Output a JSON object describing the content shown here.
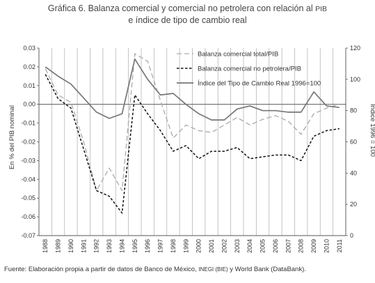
{
  "title": {
    "line1": "Gráfica 6. Balanza comercial y comercial no petrolera con relación al",
    "line1_small": "PIB",
    "line2": "e índice de tipo de cambio real"
  },
  "source": {
    "prefix": "Fuente: Elaboración propia a partir de datos de Banco de México,",
    "small": "INEGI (BIE)",
    "suffix": "y World Bank (DataBank)."
  },
  "chart_data": {
    "type": "line",
    "x": [
      "1988",
      "1989",
      "1990",
      "1991",
      "1992",
      "1993",
      "1994",
      "1995",
      "1996",
      "1997",
      "1998",
      "1999",
      "2000",
      "2001",
      "2002",
      "2003",
      "2004",
      "2005",
      "2006",
      "2007",
      "2008",
      "2009",
      "2010",
      "2011"
    ],
    "ylabel": "En % del PIB nominal",
    "y2label": "Índice 1996 = 100",
    "ylim": [
      -0.07,
      0.03
    ],
    "y2lim": [
      0,
      120
    ],
    "yticks": [
      "0.03",
      "0.02",
      "0.01",
      "0.00",
      "-0.01",
      "-0.02",
      "-0.03",
      "-0.04",
      "-0.05",
      "-0.06",
      "-0.07"
    ],
    "y2ticks": [
      "120",
      "100",
      "80",
      "60",
      "40",
      "20",
      "0"
    ],
    "grid": "vertical",
    "legend": "top-right",
    "series": [
      {
        "name": "Balanza comercial total/PIB",
        "axis": "left",
        "style": "long-dash",
        "color": "#aaaaaa",
        "values": [
          0.019,
          0.005,
          0.001,
          -0.02,
          -0.046,
          -0.034,
          -0.046,
          0.027,
          0.023,
          0.002,
          -0.018,
          -0.011,
          -0.014,
          -0.015,
          -0.011,
          -0.007,
          -0.011,
          -0.008,
          -0.006,
          -0.009,
          -0.016,
          -0.005,
          -0.002,
          0.0
        ]
      },
      {
        "name": "Balanza comercial no petrolera/PIB",
        "axis": "left",
        "style": "dash",
        "color": "#111111",
        "values": [
          0.016,
          0.003,
          -0.002,
          -0.024,
          -0.046,
          -0.049,
          -0.058,
          0.005,
          -0.005,
          -0.014,
          -0.025,
          -0.022,
          -0.029,
          -0.025,
          -0.025,
          -0.023,
          -0.029,
          -0.028,
          -0.027,
          -0.027,
          -0.03,
          -0.017,
          -0.014,
          -0.013
        ]
      },
      {
        "name": "Índice del Tipo de Cambio Real 1996=100",
        "axis": "right",
        "style": "solid",
        "color": "#777777",
        "values": [
          108,
          102,
          97,
          88,
          79,
          75,
          78,
          113,
          100,
          90,
          91,
          84,
          78,
          74,
          74,
          81,
          83,
          80,
          80,
          79,
          79,
          92,
          83,
          82
        ]
      }
    ]
  }
}
